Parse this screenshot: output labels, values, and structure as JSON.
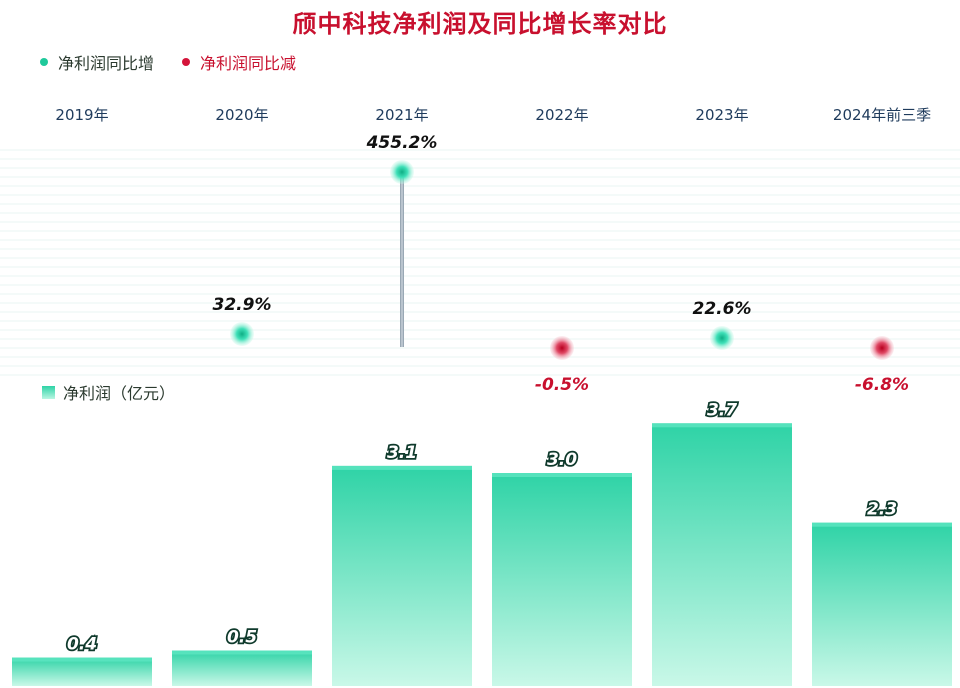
{
  "title": "颀中科技净利润及同比增长率对比",
  "legend": {
    "increase": "净利润同比增",
    "decrease": "净利润同比减",
    "bar": "净利润（亿元）"
  },
  "colors": {
    "title": "#c8102e",
    "increase": "#1fc99b",
    "decrease": "#d4143a",
    "bar_top": "#2ed3a6",
    "bar_bottom": "#c9f8e8"
  },
  "chart_data": {
    "type": "bar",
    "categories": [
      "2019年",
      "2020年",
      "2021年",
      "2022年",
      "2023年",
      "2024年前三季"
    ],
    "series": [
      {
        "name": "净利润（亿元）",
        "values": [
          0.4,
          0.5,
          3.1,
          3.0,
          3.7,
          2.3
        ]
      },
      {
        "name": "净利润同比增长率",
        "values": [
          null,
          32.9,
          455.2,
          -0.5,
          22.6,
          -6.8
        ]
      }
    ],
    "bar_labels": [
      "0.4",
      "0.5",
      "3.1",
      "3.0",
      "3.7",
      "2.3"
    ],
    "growth_labels": [
      "",
      "32.9%",
      "455.2%",
      "-0.5%",
      "22.6%",
      "-6.8%"
    ],
    "title": "颀中科技净利润及同比增长率对比",
    "legend_position": "top-left"
  }
}
